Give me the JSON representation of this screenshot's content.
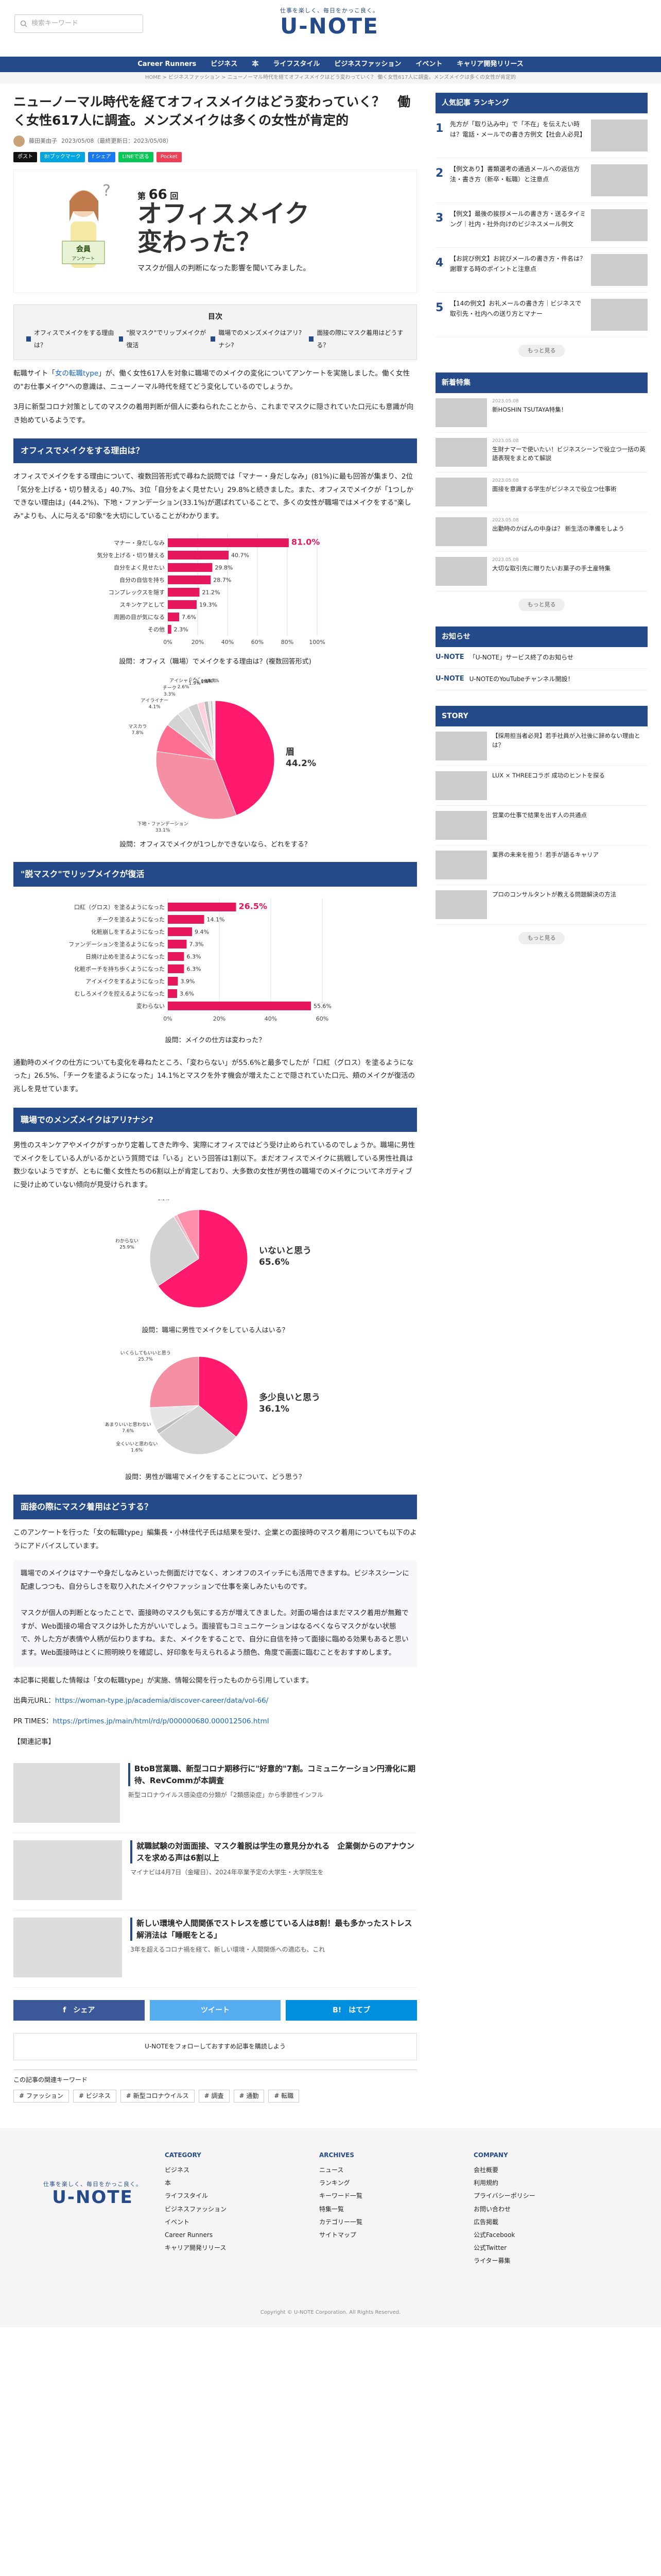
{
  "header": {
    "search_placeholder": "検索キーワード",
    "logo_tag": "仕事を楽しく、毎日をかっこ良く。",
    "logo_name": "U-NOTE"
  },
  "nav": [
    "Career Runners",
    "ビジネス",
    "本",
    "ライフスタイル",
    "ビジネスファッション",
    "イベント",
    "キャリア開発リリース"
  ],
  "breadcrumb": "HOME > ビジネスファッション > ニューノーマル時代を経てオフィスメイクはどう変わっていく？ 働く女性617人に調査。メンズメイクは多くの女性が肯定的",
  "article": {
    "title": "ニューノーマル時代を経てオフィスメイクはどう変わっていく？　働く女性617人に調査。メンズメイクは多くの女性が肯定的",
    "author": "藤田美由子",
    "dates": "2023/05/08（最終更新日：2023/05/08）",
    "share": [
      "ポスト",
      "B!ブックマーク",
      "f シェア",
      "LINEで送る",
      "Pocket"
    ],
    "hero": {
      "no_prefix": "第",
      "no": "66",
      "no_suffix": "回",
      "title_l1": "オフィスメイク",
      "title_l2": "変わった？",
      "subtitle": "マスクが個人の判断になった影響を聞いてみました。",
      "badge": "会員アンケート"
    },
    "toc_title": "目次",
    "toc": [
      "オフィスでメイクをする理由は？",
      "\"脱マスク\"でリップメイクが復活",
      "職場でのメンズメイクはアリ?ナシ?",
      "面接の際にマスク着用はどうする？"
    ],
    "p1a": "転職サイト「",
    "p1link": "女の転職type",
    "p1b": "」が、働く女性617人を対象に職場でのメイクの変化についてアンケートを実施しました。働く女性の\"お仕事メイク\"への意識は、ニューノーマル時代を経てどう変化しているのでしょうか。",
    "p2": "3月に新型コロナ対策としてのマスクの着用判断が個人に委ねられたことから、これまでマスクに隠されていた口元にも意識が向き始めているようです。",
    "h1": "オフィスでメイクをする理由は？",
    "p3": "オフィスでメイクをする理由について、複数回答形式で尋ねた説問では「マナー・身だしなみ」(81%)に最も回答が集まり、2位「気分を上げる・切り替える」40.7%、3位「自分をよく見せたい」29.8%と続きました。また、オフィスでメイクが「1つしかできない理由は」(44.2%)、下地・ファンデーション(33.1%)が選ばれていることで、多くの女性が職場ではメイクをする\"楽しみ\"よりも、人に与える\"印象\"を大切にしていることがわかります。",
    "cap1": "設問：オフィス（職場）でメイクをする理由は？(複数回答形式)",
    "cap2": "設問：オフィスでメイクが1つしかできないなら、どれをする？",
    "h2": "\"脱マスク\"でリップメイクが復活",
    "cap3": "設問：メイクの仕方は変わった？",
    "p4": "通勤時のメイクの仕方についても変化を尋ねたところ、「変わらない」が55.6%と最多でしたが「口紅（グロス）を塗るようになった」26.5%、「チークを塗るようになった」14.1%とマスクを外す機会が増えたことで隠されていた口元、頬のメイクが復活の兆しを見せています。",
    "h3": "職場でのメンズメイクはアリ?ナシ?",
    "p5": "男性のスキンケアやメイクがすっかり定着してきた昨今、実際にオフィスではどう受け止められているのでしょうか。職場に男性でメイクをしている人がいるかという質問では「いる」という回答は1割以下。まだオフィスでメイクに挑戦している男性社員は数少ないようですが、ともに働く女性たちの6割以上が肯定しており、大多数の女性が男性の職場でのメイクについてネガティブに受け止めていない傾向が見受けられます。",
    "cap4": "設問：職場に男性でメイクをしている人はいる？",
    "cap5": "設問：男性が職場でメイクをすることについて、どう思う？",
    "h4": "面接の際にマスク着用はどうする？",
    "p6": "このアンケートを行った「女の転職type」編集長・小林佳代子氏は結果を受け、企業との面接時のマスク着用についても以下のようにアドバイスしています。",
    "quote": "職場でのメイクはマナーや身だしなみといった側面だけでなく、オンオフのスイッチにも活用できますね。ビジネスシーンに配慮しつつも、自分らしさを取り入れたメイクやファッションで仕事を楽しみたいものです。\n\nマスクが個人の判断となったことで、面接時のマスクも気にする方が増えてきました。対面の場合はまだマスク着用が無難ですが、Web面接の場合マスクは外した方がいいでしょう。面接官もコミュニケーションはなるべくならマスクがない状態で、外した方が表情や人柄が伝わりますね。また、メイクをすることで、自分に自信を持って面接に臨める効果もあると思います。Web面接時はとくに照明映りを確認し、好印象を与えられるよう顔色、角度で画面に臨むことをおすすめします。",
    "p7": "本記事に掲載した情報は「女の転職type」が実施、情報公開を行ったものから引用しています。",
    "src1_label": "出典元URL：",
    "src1": "https://woman-type.jp/academia/discover-career/data/vol-66/",
    "src2_label": "PR TIMES：",
    "src2": "https://prtimes.jp/main/html/rd/p/000000680.000012506.html",
    "related_label": "【関連記事】",
    "related": [
      {
        "title": "BtoB営業職、新型コロナ期移行に\"好意的\"7割。コミュニケーション円滑化に期待、RevCommが本調査",
        "excerpt": "新型コロナウイルス感染症の分類が「2類感染症」から季節性インフル"
      },
      {
        "title": "就職試験の対面面接、マスク着脱は学生の意見分かれる　企業側からのアナウンスを求める声は6割以上",
        "excerpt": "マイナビは4月7日（金曜日）、2024年卒業予定の大学生・大学院生を"
      },
      {
        "title": "新しい環境や人間関係でストレスを感じている人は8割！最も多かったストレス解消法は「睡眠をとる」",
        "excerpt": "3年を超えるコロナ禍を経て、新しい環境・人間関係への適応も、これ"
      }
    ],
    "sharebar": [
      "f　シェア",
      "ツイート",
      "B!　はてブ"
    ],
    "follow": "U-NOTEをフォローしておすすめ記事を購読しよう",
    "kw_title": "この記事の関連キーワード",
    "keywords": [
      "# ファッション",
      "# ビジネス",
      "# 新型コロナウイルス",
      "# 調査",
      "# 通勤",
      "# 転職"
    ]
  },
  "chart1": {
    "type": "bar",
    "categories": [
      "マナー・身だしなみ",
      "気分を上げる・切り替える",
      "自分をよく見せたい",
      "自分の自信を持ち",
      "コンプレックスを隠す",
      "スキンケアとして",
      "周囲の目が気になる",
      "その他"
    ],
    "values": [
      81.0,
      40.7,
      29.8,
      28.7,
      21.2,
      19.3,
      7.6,
      2.3
    ],
    "ticks": [
      "0%",
      "20%",
      "40%",
      "60%",
      "80%",
      "100%"
    ],
    "xlim": [
      0,
      100
    ]
  },
  "chart2": {
    "type": "pie",
    "labels": [
      "眉",
      "下地・ファンデーション",
      "マスカラ",
      "アイライナー",
      "チーク",
      "アイシャドウ",
      "リップ",
      "マスカラ・つけまつげ",
      "その他",
      "いずれも",
      "なし"
    ],
    "values": [
      44.2,
      33.1,
      7.8,
      4.1,
      3.3,
      2.6,
      1.9,
      1.1,
      0.6,
      0.6,
      0.7
    ],
    "colors": [
      "#ff1a6e",
      "#f48fa4",
      "#ff6f91",
      "#d3d3d3",
      "#e0e0e0",
      "#cfcfcf",
      "#ffd1dc",
      "#bbbbbb",
      "#e9e9e9",
      "#c8c8c8",
      "#f0f0f0"
    ]
  },
  "chart3": {
    "type": "bar",
    "categories": [
      "口紅（グロス）を塗るようになった",
      "チークを塗るようになった",
      "化粧崩しをするようになった",
      "ファンデーションを塗るようになった",
      "日焼け止めを塗るようになった",
      "化粧ポーチを持ち歩くようになった",
      "アイメイクをするようになった",
      "むしろメイクを控えるようになった",
      "変わらない"
    ],
    "values": [
      26.5,
      14.1,
      9.4,
      7.3,
      6.3,
      6.3,
      3.9,
      3.6,
      55.6
    ],
    "ticks": [
      "0%",
      "20%",
      "40%",
      "60%"
    ],
    "xlim": [
      0,
      60
    ]
  },
  "chart4": {
    "type": "pie",
    "labels": [
      "いないと思う",
      "わからない",
      "たくさんいる",
      "少しいる"
    ],
    "values": [
      65.6,
      25.9,
      1.1,
      7.4
    ],
    "colors": [
      "#ff1a6e",
      "#d3d3d3",
      "#f7b6c6",
      "#ff8fab"
    ],
    "big_label": "いないと思う\n65.6%"
  },
  "chart5": {
    "type": "pie",
    "labels": [
      "多少良いと思う",
      "とくに何も思わない",
      "全くいいと思わない",
      "あまりいいと思わない",
      "いくらしてもいいと思う"
    ],
    "values": [
      36.1,
      29.0,
      1.6,
      7.6,
      25.7
    ],
    "colors": [
      "#ff1a6e",
      "#d3d3d3",
      "#bdbdbd",
      "#e6e6e6",
      "#f48fa4"
    ],
    "big_label": "多少良いと思う\n36.1%"
  },
  "sidebar": {
    "ranking_title": "人気記事 ランキング",
    "ranking": [
      "先方が「取り込み中」で「不在」を伝えたい時は？電話・メールでの書き方例文【社会人必見】",
      "【例文あり】書類選考の通過メールへの返信方法・書き方（新卒・転職）と注意点",
      "【例文】最後の挨拶メールの書き方・送るタイミング｜社内・社外向けのビジネスメール例文",
      "【お詫び例文】お詫びメールの書き方・件名は？謝罪する時のポイントと注意点",
      "【14の例文】お礼メールの書き方｜ビジネスで取引先・社内への送り方とマナー"
    ],
    "more": "もっと見る",
    "new_title": "新着特集",
    "news": [
      {
        "date": "2023.05.08",
        "t": "新HOSHIN TSUTAYA特集！"
      },
      {
        "date": "2023.05.08",
        "t": "生財ナマーで使いたい！ビジネスシーンで役立つ一括の英語表現をまとめて解説"
      },
      {
        "date": "2023.05.08",
        "t": "面接を意識する学生がビジネスで役立つ仕事術"
      },
      {
        "date": "2023.05.08",
        "t": "出勤時のかばんの中身は？ 新生活の準備をしよう"
      },
      {
        "date": "2023.05.08",
        "t": "大切な取引先に贈りたいお菓子の手土産特集"
      }
    ],
    "notice_title": "お知らせ",
    "notices": [
      "「U-NOTE」サービス終了のお知らせ",
      "U-NOTEのYouTubeチャンネル開設！"
    ],
    "story_title": "STORY",
    "stories": [
      "【採用担当者必見】若手社員が入社後に辞めない理由とは？",
      "LUX × THREEコラボ 成功のヒントを探る",
      "営業の仕事で結果を出す人の共通点",
      "業界の未来を担う！若手が語るキャリア",
      "プロのコンサルタントが教える問題解決の方法"
    ]
  },
  "footer": {
    "cat_title": "CATEGORY",
    "cats": [
      "ビジネス",
      "本",
      "ライフスタイル",
      "ビジネスファッション",
      "イベント",
      "Career Runners",
      "キャリア開発リリース"
    ],
    "arc_title": "ARCHIVES",
    "arcs": [
      "ニュース",
      "ランキング",
      "キーワード一覧",
      "特集一覧",
      "カテゴリー一覧",
      "サイトマップ"
    ],
    "com_title": "COMPANY",
    "coms": [
      "会社概要",
      "利用規約",
      "プライバシーポリシー",
      "お問い合わせ",
      "広告掲載",
      "公式Facebook",
      "公式Twitter",
      "ライター募集"
    ],
    "copyright": "Copyright © U-NOTE Corporation. All Rights Reserved."
  }
}
